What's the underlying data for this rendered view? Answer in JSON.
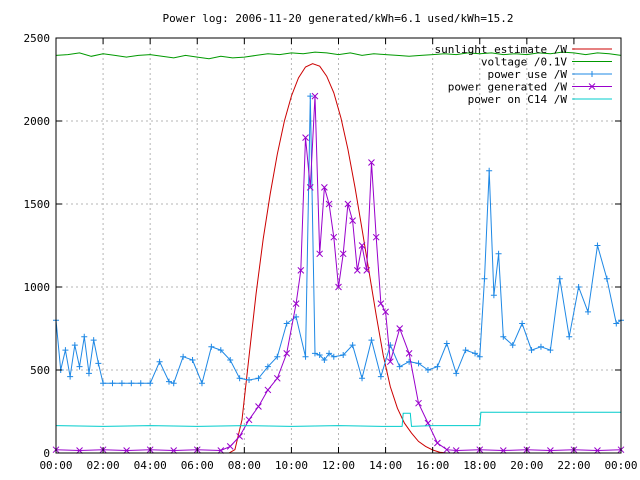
{
  "chart_data": {
    "type": "line",
    "title": "Power log: 2006-11-20 generated/kWh=6.1 used/kWh=15.2",
    "xlabel": "",
    "ylabel": "",
    "xlim": [
      0,
      24
    ],
    "ylim": [
      0,
      2500
    ],
    "grid": true,
    "legend_position": "top-right",
    "x_ticks": [
      {
        "value": 0,
        "label": "00:00"
      },
      {
        "value": 2,
        "label": "02:00"
      },
      {
        "value": 4,
        "label": "04:00"
      },
      {
        "value": 6,
        "label": "06:00"
      },
      {
        "value": 8,
        "label": "08:00"
      },
      {
        "value": 10,
        "label": "10:00"
      },
      {
        "value": 12,
        "label": "12:00"
      },
      {
        "value": 14,
        "label": "14:00"
      },
      {
        "value": 16,
        "label": "16:00"
      },
      {
        "value": 18,
        "label": "18:00"
      },
      {
        "value": 20,
        "label": "20:00"
      },
      {
        "value": 22,
        "label": "22:00"
      },
      {
        "value": 24,
        "label": "00:00"
      }
    ],
    "y_ticks": [
      {
        "value": 0,
        "label": "0"
      },
      {
        "value": 500,
        "label": "500"
      },
      {
        "value": 1000,
        "label": "1000"
      },
      {
        "value": 1500,
        "label": "1500"
      },
      {
        "value": 2000,
        "label": "2000"
      },
      {
        "value": 2500,
        "label": "2500"
      }
    ],
    "series": [
      {
        "name": "sunlight estimate /W",
        "color": "#cc0000",
        "marker": "none",
        "x": [
          0,
          7.35,
          7.6,
          7.9,
          8.2,
          8.5,
          8.8,
          9.1,
          9.4,
          9.7,
          10.0,
          10.3,
          10.6,
          10.9,
          11.2,
          11.5,
          11.8,
          12.1,
          12.4,
          12.7,
          13.0,
          13.3,
          13.6,
          13.9,
          14.2,
          14.5,
          14.8,
          15.1,
          15.4,
          15.7,
          16.0,
          16.3,
          16.6,
          24
        ],
        "y": [
          0,
          0,
          20,
          200,
          580,
          960,
          1290,
          1560,
          1800,
          2000,
          2150,
          2260,
          2325,
          2345,
          2330,
          2270,
          2170,
          2020,
          1830,
          1600,
          1350,
          1090,
          830,
          590,
          400,
          270,
          180,
          120,
          70,
          40,
          18,
          5,
          0,
          0
        ]
      },
      {
        "name": "voltage /0.1V",
        "color": "#009900",
        "marker": "none",
        "x": [
          0,
          0.5,
          1,
          1.5,
          2,
          2.5,
          3,
          3.5,
          4,
          4.5,
          5,
          5.5,
          6,
          6.5,
          7,
          7.5,
          8,
          8.5,
          9,
          9.5,
          10,
          10.5,
          11,
          11.5,
          12,
          12.5,
          13,
          13.5,
          14,
          14.5,
          15,
          15.5,
          16,
          16.5,
          17,
          17.5,
          18,
          18.5,
          19,
          19.5,
          20,
          20.5,
          21,
          21.5,
          22,
          22.5,
          23,
          23.5,
          24
        ],
        "y": [
          2395,
          2400,
          2410,
          2390,
          2405,
          2395,
          2385,
          2395,
          2400,
          2390,
          2380,
          2395,
          2385,
          2375,
          2390,
          2380,
          2385,
          2395,
          2405,
          2400,
          2410,
          2405,
          2415,
          2410,
          2400,
          2410,
          2395,
          2405,
          2400,
          2395,
          2390,
          2395,
          2400,
          2405,
          2400,
          2410,
          2405,
          2410,
          2400,
          2405,
          2400,
          2410,
          2405,
          2415,
          2410,
          2400,
          2410,
          2405,
          2395
        ]
      },
      {
        "name": "power use /W",
        "color": "#1e88e5",
        "marker": "plus",
        "x": [
          0,
          0.2,
          0.4,
          0.6,
          0.8,
          1.0,
          1.2,
          1.4,
          1.6,
          1.8,
          2.0,
          2.4,
          2.8,
          3.2,
          3.6,
          4.0,
          4.4,
          4.8,
          5.0,
          5.4,
          5.8,
          6.2,
          6.6,
          7.0,
          7.4,
          7.8,
          8.2,
          8.6,
          9.0,
          9.4,
          9.8,
          10.2,
          10.6,
          10.8,
          11.0,
          11.2,
          11.4,
          11.6,
          11.8,
          12.2,
          12.6,
          13.0,
          13.4,
          13.8,
          14.2,
          14.6,
          15.0,
          15.4,
          15.8,
          16.2,
          16.6,
          17.0,
          17.4,
          17.8,
          18.0,
          18.2,
          18.4,
          18.6,
          18.8,
          19.0,
          19.4,
          19.8,
          20.2,
          20.6,
          21.0,
          21.4,
          21.8,
          22.2,
          22.6,
          23.0,
          23.4,
          23.8,
          24.0
        ],
        "y": [
          800,
          500,
          620,
          460,
          650,
          520,
          700,
          480,
          680,
          540,
          420,
          420,
          420,
          420,
          420,
          420,
          550,
          430,
          420,
          580,
          560,
          420,
          640,
          620,
          560,
          450,
          440,
          450,
          520,
          580,
          780,
          820,
          580,
          2150,
          600,
          590,
          560,
          600,
          580,
          590,
          650,
          450,
          680,
          460,
          650,
          520,
          550,
          540,
          500,
          520,
          660,
          480,
          620,
          600,
          580,
          1050,
          1700,
          950,
          1200,
          700,
          650,
          780,
          620,
          640,
          620,
          1050,
          700,
          1000,
          850,
          1250,
          1050,
          780,
          800
        ]
      },
      {
        "name": "power generated /W",
        "color": "#9900cc",
        "marker": "x",
        "x": [
          0,
          1,
          2,
          3,
          4,
          5,
          6,
          7,
          7.4,
          7.8,
          8.2,
          8.6,
          9.0,
          9.4,
          9.8,
          10.2,
          10.4,
          10.6,
          10.8,
          11.0,
          11.2,
          11.4,
          11.6,
          11.8,
          12.0,
          12.2,
          12.4,
          12.6,
          12.8,
          13.0,
          13.2,
          13.4,
          13.6,
          13.8,
          14.0,
          14.2,
          14.6,
          15.0,
          15.4,
          15.8,
          16.2,
          16.6,
          17.0,
          18,
          19,
          20,
          21,
          22,
          23,
          24
        ],
        "y": [
          20,
          15,
          20,
          15,
          20,
          15,
          20,
          15,
          40,
          100,
          200,
          280,
          380,
          450,
          600,
          900,
          1100,
          1900,
          1600,
          2150,
          1200,
          1600,
          1500,
          1300,
          1000,
          1200,
          1500,
          1400,
          1100,
          1250,
          1100,
          1750,
          1300,
          900,
          850,
          550,
          750,
          600,
          300,
          180,
          60,
          20,
          15,
          20,
          15,
          20,
          15,
          20,
          15,
          20
        ]
      },
      {
        "name": "power on C14 /W",
        "color": "#00cccc",
        "marker": "none",
        "x": [
          0,
          2,
          4,
          6,
          8,
          10,
          12,
          14,
          14.7,
          14.75,
          15.05,
          15.1,
          16,
          18.0,
          18.05,
          20,
          22,
          24
        ],
        "y": [
          165,
          160,
          165,
          160,
          165,
          160,
          165,
          160,
          160,
          240,
          240,
          160,
          165,
          165,
          245,
          245,
          245,
          245
        ]
      }
    ]
  }
}
